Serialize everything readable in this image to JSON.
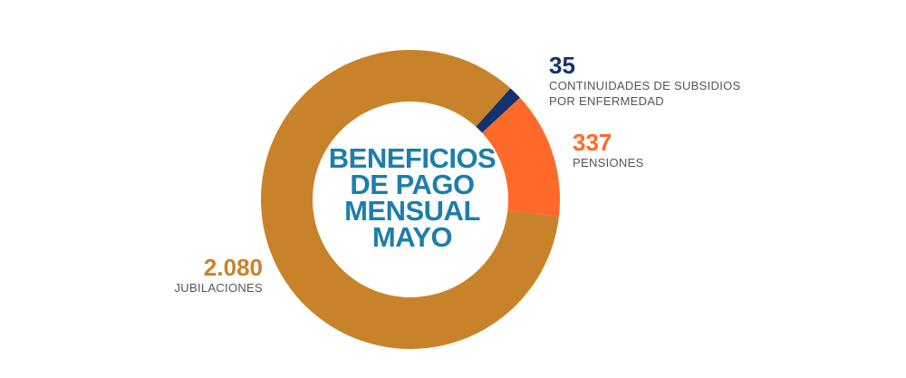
{
  "chart_data": {
    "type": "pie",
    "title_lines": [
      "BENEFICIOS",
      "DE PAGO",
      "MENSUAL",
      "MAYO"
    ],
    "slices": [
      {
        "value_label": "35",
        "value": 35,
        "name_lines": [
          "CONTINUIDADES DE SUBSIDIOS",
          "POR ENFERMEDAD"
        ],
        "color": "#13326f"
      },
      {
        "value_label": "337",
        "value": 337,
        "name_lines": [
          "PENSIONES"
        ],
        "color": "#ff6a2a"
      },
      {
        "value_label": "2.080",
        "value": 2080,
        "name_lines": [
          "JUBILACIONES"
        ],
        "color": "#c8832a"
      }
    ]
  }
}
